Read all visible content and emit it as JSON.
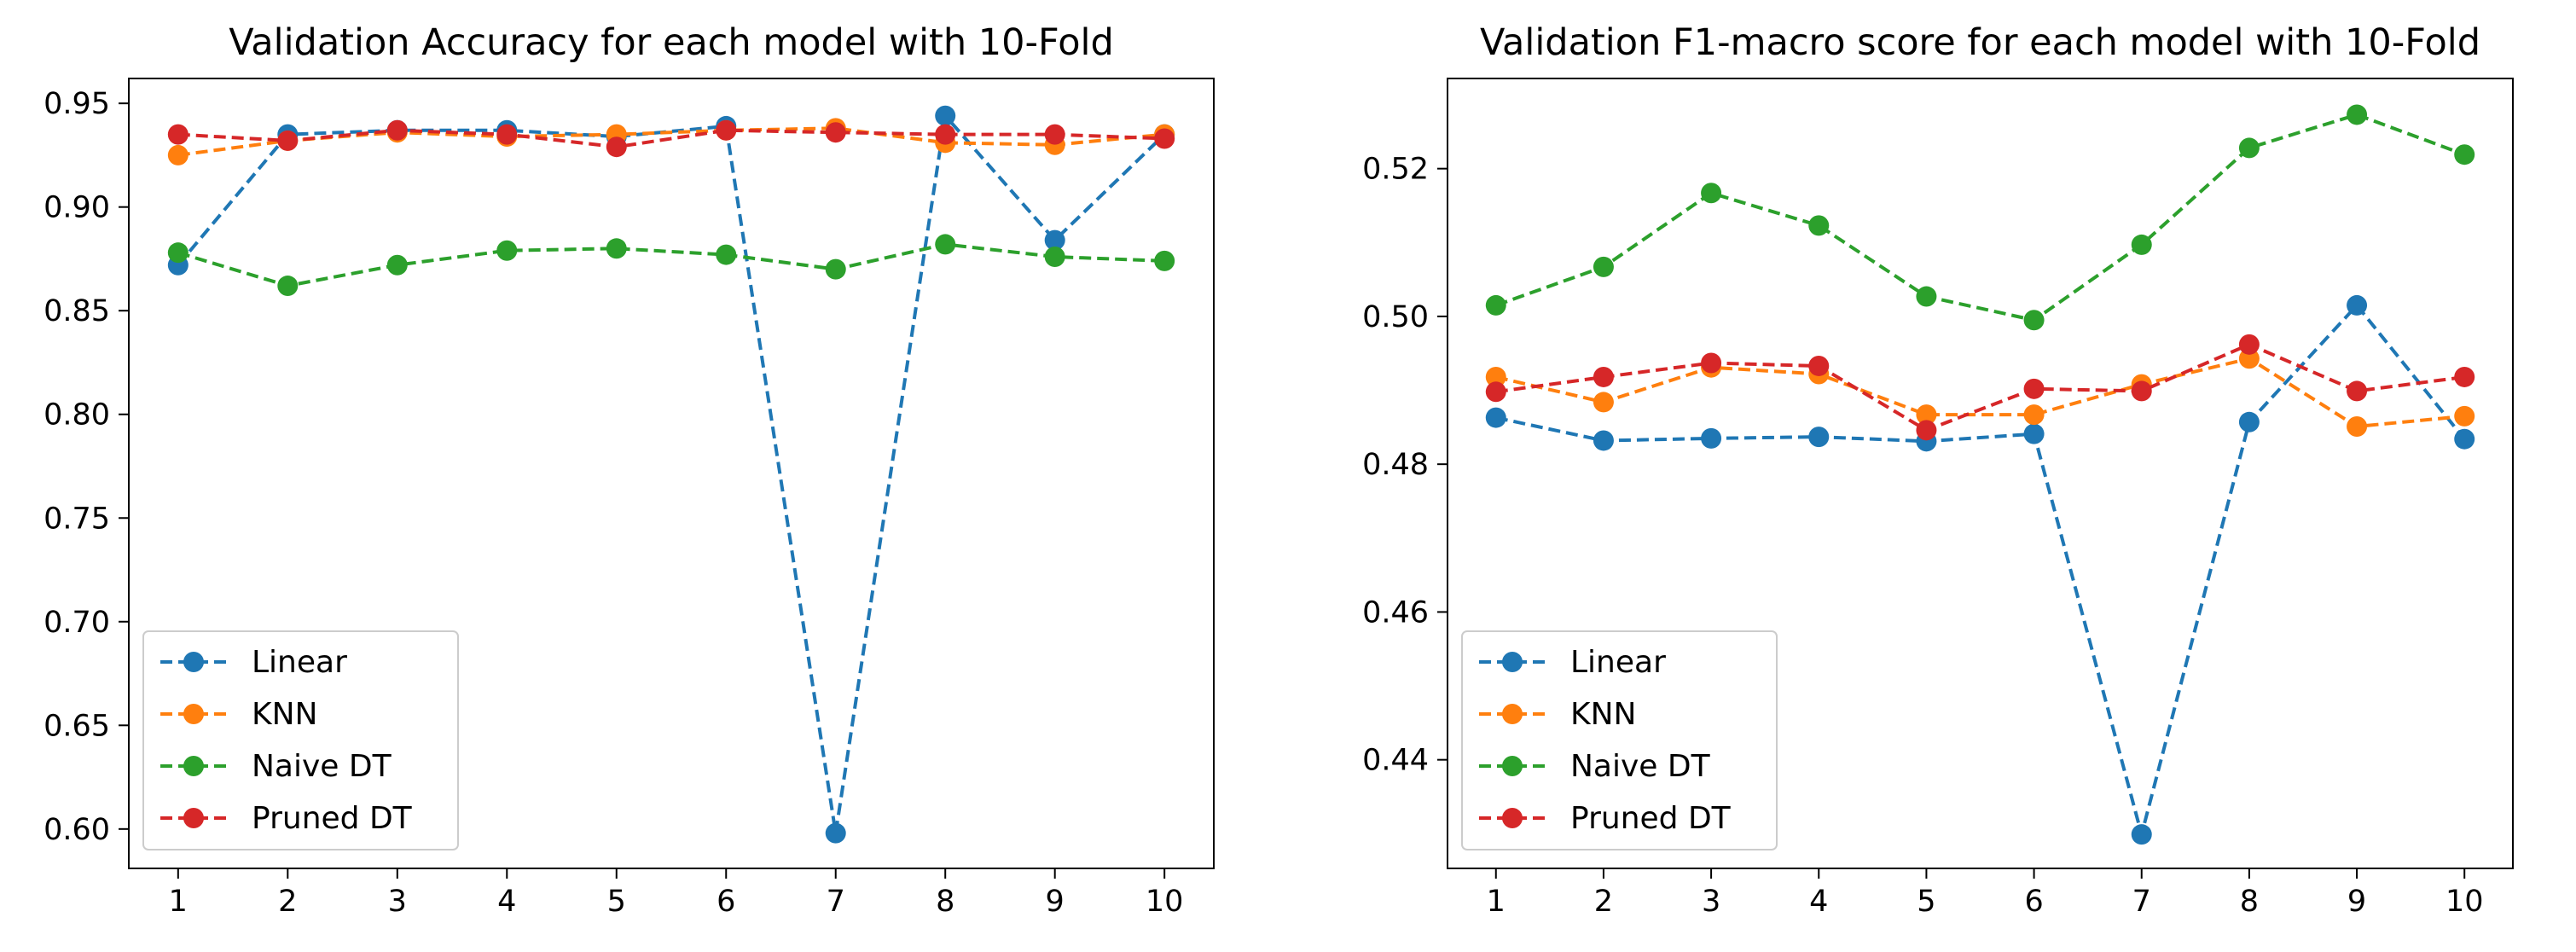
{
  "chart_data": [
    {
      "type": "line",
      "title": "Validation Accuracy for each model with 10-Fold",
      "xlabel": "",
      "ylabel": "",
      "x": [
        1,
        2,
        3,
        4,
        5,
        6,
        7,
        8,
        9,
        10
      ],
      "xticks": [
        "1",
        "2",
        "3",
        "4",
        "5",
        "6",
        "7",
        "8",
        "9",
        "10"
      ],
      "xlim": [
        0.55,
        10.45
      ],
      "ylim": [
        0.581,
        0.962
      ],
      "yticks": [
        "0.60",
        "0.65",
        "0.70",
        "0.75",
        "0.80",
        "0.85",
        "0.90",
        "0.95"
      ],
      "ytick_values": [
        0.6,
        0.65,
        0.7,
        0.75,
        0.8,
        0.85,
        0.9,
        0.95
      ],
      "grid": false,
      "legend_position": "lower-left",
      "series": [
        {
          "name": "Linear",
          "color": "#1f77b4",
          "values": [
            0.872,
            0.935,
            0.937,
            0.937,
            0.934,
            0.939,
            0.598,
            0.944,
            0.884,
            0.935
          ]
        },
        {
          "name": "KNN",
          "color": "#ff7f0e",
          "values": [
            0.925,
            0.932,
            0.936,
            0.934,
            0.935,
            0.937,
            0.938,
            0.931,
            0.93,
            0.935
          ]
        },
        {
          "name": "Naive DT",
          "color": "#2ca02c",
          "values": [
            0.878,
            0.862,
            0.872,
            0.879,
            0.88,
            0.877,
            0.87,
            0.882,
            0.876,
            0.874
          ]
        },
        {
          "name": "Pruned DT",
          "color": "#d62728",
          "values": [
            0.935,
            0.932,
            0.937,
            0.935,
            0.929,
            0.937,
            0.936,
            0.935,
            0.935,
            0.933
          ]
        }
      ]
    },
    {
      "type": "line",
      "title": "Validation F1-macro score for each model with 10-Fold",
      "xlabel": "",
      "ylabel": "",
      "x": [
        1,
        2,
        3,
        4,
        5,
        6,
        7,
        8,
        9,
        10
      ],
      "xticks": [
        "1",
        "2",
        "3",
        "4",
        "5",
        "6",
        "7",
        "8",
        "9",
        "10"
      ],
      "xlim": [
        0.55,
        10.45
      ],
      "ylim": [
        0.4253,
        0.5322
      ],
      "yticks": [
        "0.44",
        "0.46",
        "0.48",
        "0.50",
        "0.52"
      ],
      "ytick_values": [
        0.44,
        0.46,
        0.48,
        0.5,
        0.52
      ],
      "grid": false,
      "legend_position": "lower-left",
      "series": [
        {
          "name": "Linear",
          "color": "#1f77b4",
          "values": [
            0.4863,
            0.4832,
            0.4835,
            0.4837,
            0.4831,
            0.4841,
            0.4299,
            0.4857,
            0.5015,
            0.4834
          ]
        },
        {
          "name": "KNN",
          "color": "#ff7f0e",
          "values": [
            0.4918,
            0.4884,
            0.4931,
            0.4922,
            0.4867,
            0.4867,
            0.4908,
            0.4943,
            0.4851,
            0.4865
          ]
        },
        {
          "name": "Naive DT",
          "color": "#2ca02c",
          "values": [
            0.5015,
            0.5067,
            0.5167,
            0.5123,
            0.5027,
            0.4995,
            0.5097,
            0.5228,
            0.5273,
            0.5219
          ]
        },
        {
          "name": "Pruned DT",
          "color": "#d62728",
          "values": [
            0.4898,
            0.4918,
            0.4937,
            0.4933,
            0.4846,
            0.4902,
            0.4899,
            0.4962,
            0.4899,
            0.4918
          ]
        }
      ]
    }
  ]
}
